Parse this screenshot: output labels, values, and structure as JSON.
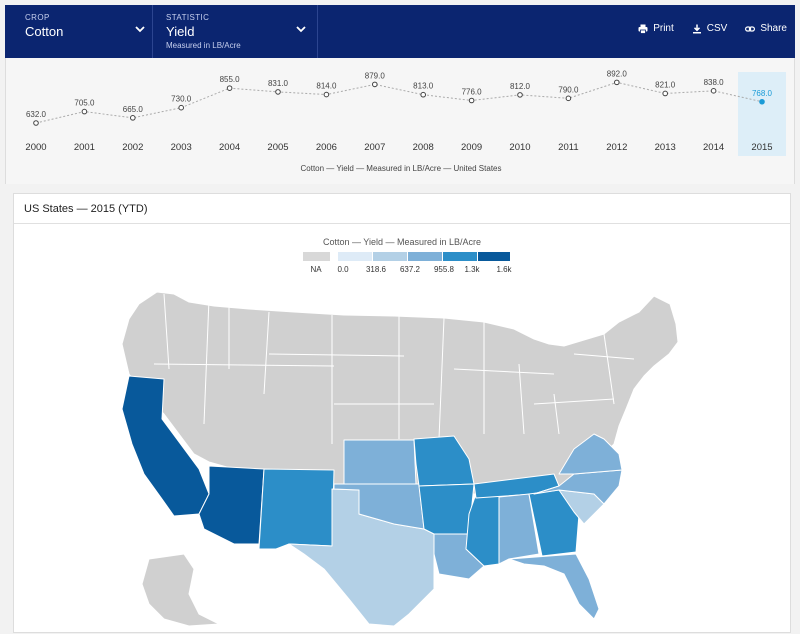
{
  "header": {
    "crop": {
      "label": "CROP",
      "value": "Cotton"
    },
    "statistic": {
      "label": "STATISTIC",
      "value": "Yield",
      "sub": "Measured in LB/Acre"
    },
    "actions": {
      "print": "Print",
      "csv": "CSV",
      "share": "Share"
    }
  },
  "timeline": {
    "caption": "Cotton — Yield — Measured in LB/Acre — United States",
    "selected_year": "2015",
    "colors": {
      "selected": "#1a9bd7",
      "point": "#444444",
      "highlight": "#ddeef8"
    }
  },
  "chart_data": {
    "type": "line",
    "x": [
      "2000",
      "2001",
      "2002",
      "2003",
      "2004",
      "2005",
      "2006",
      "2007",
      "2008",
      "2009",
      "2010",
      "2011",
      "2012",
      "2013",
      "2014",
      "2015"
    ],
    "series": [
      {
        "values": [
          632,
          705,
          665,
          730,
          855,
          831,
          814,
          879,
          813,
          776,
          812,
          790,
          892,
          821,
          838,
          768
        ]
      }
    ],
    "value_labels": [
      "632.0",
      "705.0",
      "665.0",
      "730.0",
      "855.0",
      "831.0",
      "814.0",
      "879.0",
      "813.0",
      "776.0",
      "812.0",
      "790.0",
      "892.0",
      "821.0",
      "838.0",
      "768.0"
    ],
    "ylim": [
      600,
      920
    ]
  },
  "map_card": {
    "title": "US States — 2015 (YTD)",
    "legend_title": "Cotton — Yield — Measured in LB/Acre",
    "legend": [
      {
        "label": "NA",
        "color": "#d8d8d8"
      },
      {
        "label": "0.0",
        "color": "#deebf7"
      },
      {
        "label": "318.6",
        "color": "#b3d0e6"
      },
      {
        "label": "637.2",
        "color": "#7eb0d8"
      },
      {
        "label": "955.8",
        "color": "#2c8ec8"
      },
      {
        "label": "1.3k",
        "color": "#08599b"
      },
      {
        "label": "1.6k",
        "color": ""
      }
    ],
    "colors": {
      "na": "#d0d0d0",
      "c1": "#b3d0e6",
      "c2": "#7eb0d8",
      "c3": "#2c8ec8",
      "c4": "#08599b"
    }
  }
}
